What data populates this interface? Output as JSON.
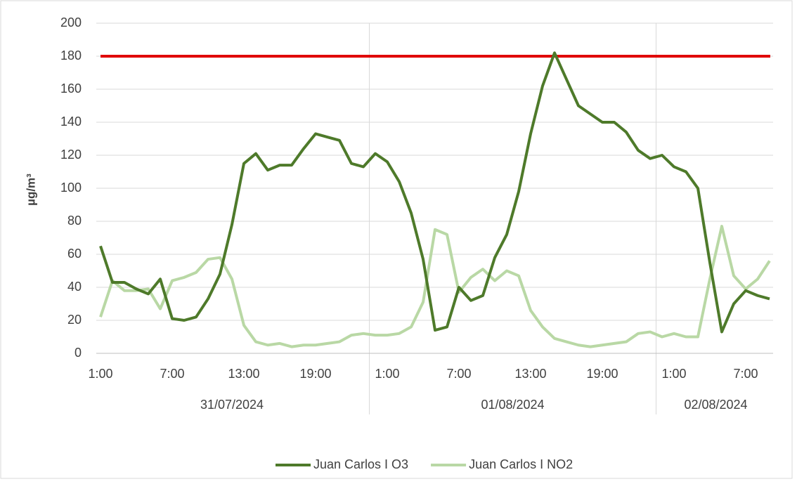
{
  "chart_data": {
    "type": "line",
    "y_label": "µg/m³",
    "categories": [
      "1:00",
      null,
      null,
      null,
      null,
      null,
      "7:00",
      null,
      null,
      null,
      null,
      null,
      "13:00",
      null,
      null,
      null,
      null,
      null,
      "19:00",
      null,
      null,
      null,
      null,
      null,
      "1:00",
      null,
      null,
      null,
      null,
      null,
      "7:00",
      null,
      null,
      null,
      null,
      null,
      "13:00",
      null,
      null,
      null,
      null,
      null,
      "19:00",
      null,
      null,
      null,
      null,
      null,
      "1:00",
      null,
      null,
      null,
      null,
      null,
      "7:00",
      null,
      null
    ],
    "date_groups": [
      {
        "label": "31/07/2024",
        "count": 23
      },
      {
        "label": "01/08/2024",
        "count": 24
      },
      {
        "label": "02/08/2024",
        "count": 10
      }
    ],
    "series": [
      {
        "name": "Juan Carlos I O3",
        "color": "#4e7a2a",
        "values": [
          65,
          43,
          43,
          39,
          36,
          45,
          21,
          20,
          22,
          33,
          48,
          78,
          115,
          121,
          111,
          114,
          114,
          124,
          133,
          131,
          129,
          115,
          113,
          121,
          116,
          104,
          85,
          57,
          14,
          16,
          40,
          32,
          35,
          58,
          72,
          98,
          133,
          162,
          182,
          166,
          150,
          145,
          140,
          140,
          134,
          123,
          118,
          120,
          113,
          110,
          100,
          55,
          13,
          30,
          38,
          35,
          33
        ]
      },
      {
        "name": "Juan Carlos I NO2",
        "color": "#b9d8a5",
        "values": [
          22,
          44,
          38,
          38,
          39,
          27,
          44,
          46,
          49,
          57,
          58,
          45,
          17,
          7,
          5,
          6,
          4,
          5,
          5,
          6,
          7,
          11,
          12,
          11,
          11,
          12,
          16,
          31,
          75,
          72,
          37,
          46,
          51,
          44,
          50,
          47,
          26,
          16,
          9,
          7,
          5,
          4,
          5,
          6,
          7,
          12,
          13,
          10,
          12,
          10,
          10,
          45,
          77,
          47,
          39,
          45,
          56
        ]
      }
    ],
    "threshold": {
      "value": 180,
      "color": "#e00000"
    },
    "ylim": [
      0,
      200
    ],
    "yticks": [
      0,
      20,
      40,
      60,
      80,
      100,
      120,
      140,
      160,
      180,
      200
    ],
    "grid": true,
    "legend": "bottom"
  }
}
